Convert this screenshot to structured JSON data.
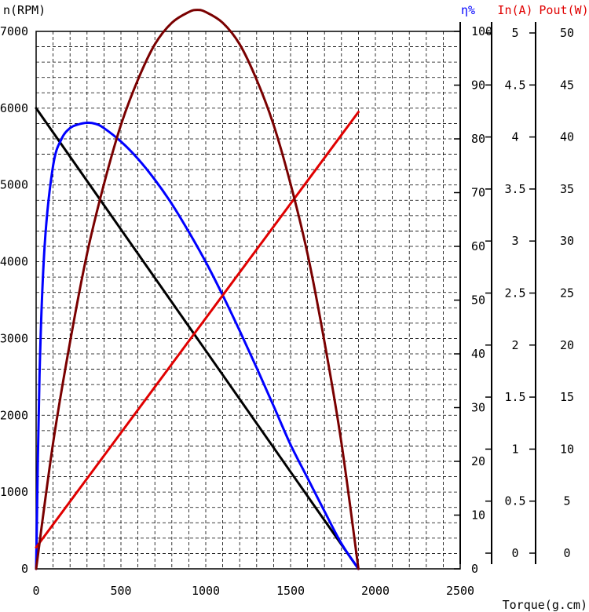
{
  "chart_data": {
    "type": "line",
    "x_axis": {
      "label": "Torque(g.cm)",
      "min": 0,
      "max": 2500,
      "step": 500,
      "ticks": [
        "0",
        "500",
        "1000",
        "1500",
        "2000",
        "2500"
      ]
    },
    "y_axes": [
      {
        "id": "speed",
        "label": "n(RPM)",
        "min": 0,
        "max": 7000,
        "color": "#000000",
        "ticks": [
          "0",
          "1000",
          "2000",
          "3000",
          "4000",
          "5000",
          "6000",
          "7000"
        ]
      },
      {
        "id": "efficiency",
        "label": "η%",
        "min": 0,
        "max": 100,
        "color": "#0000ff",
        "ticks": [
          "0",
          "10",
          "20",
          "30",
          "40",
          "50",
          "60",
          "70",
          "80",
          "90",
          "100"
        ]
      },
      {
        "id": "current",
        "label": "In(A)",
        "min": 0,
        "max": 5,
        "color": "#e00000",
        "ticks": [
          "0",
          "0.5",
          "1",
          "1.5",
          "2",
          "2.5",
          "3",
          "3.5",
          "4",
          "4.5",
          "5"
        ]
      },
      {
        "id": "power",
        "label": "Pout(W)",
        "min": 0,
        "max": 50,
        "color": "#e00000",
        "ticks": [
          "0",
          "5",
          "10",
          "15",
          "20",
          "25",
          "30",
          "35",
          "40",
          "45",
          "50"
        ]
      }
    ],
    "grid": true,
    "series": [
      {
        "axis": "speed",
        "color": "#000000",
        "x": [
          0,
          1900
        ],
        "y": [
          6000,
          0
        ]
      },
      {
        "axis": "efficiency",
        "color": "#0000ff",
        "x": [
          0,
          20,
          50,
          100,
          150,
          200,
          250,
          300,
          350,
          400,
          500,
          600,
          700,
          800,
          900,
          1000,
          1100,
          1200,
          1300,
          1400,
          1500,
          1600,
          1700,
          1800,
          1900
        ],
        "y": [
          0,
          36,
          60,
          75,
          80,
          82,
          82.7,
          83,
          82.8,
          82,
          79.5,
          76.3,
          72.4,
          67.9,
          62.7,
          57.1,
          50.9,
          44.3,
          37.4,
          30.3,
          23.1,
          16.9,
          10.7,
          4.7,
          0
        ]
      },
      {
        "axis": "current",
        "color": "#e00000",
        "x": [
          0,
          1900
        ],
        "y": [
          0.2,
          4.25
        ]
      },
      {
        "axis": "power",
        "color": "#7a0000",
        "x": [
          0,
          100,
          200,
          300,
          400,
          500,
          600,
          700,
          800,
          900,
          950,
          1000,
          1100,
          1200,
          1300,
          1400,
          1500,
          1600,
          1700,
          1800,
          1900
        ],
        "y": [
          0,
          11.7,
          21.1,
          29.3,
          35.8,
          41.3,
          45.5,
          48.8,
          50.8,
          51.8,
          52,
          51.8,
          50.8,
          48.8,
          45.5,
          41.3,
          35.8,
          29.3,
          21.1,
          11.7,
          0
        ]
      }
    ]
  }
}
